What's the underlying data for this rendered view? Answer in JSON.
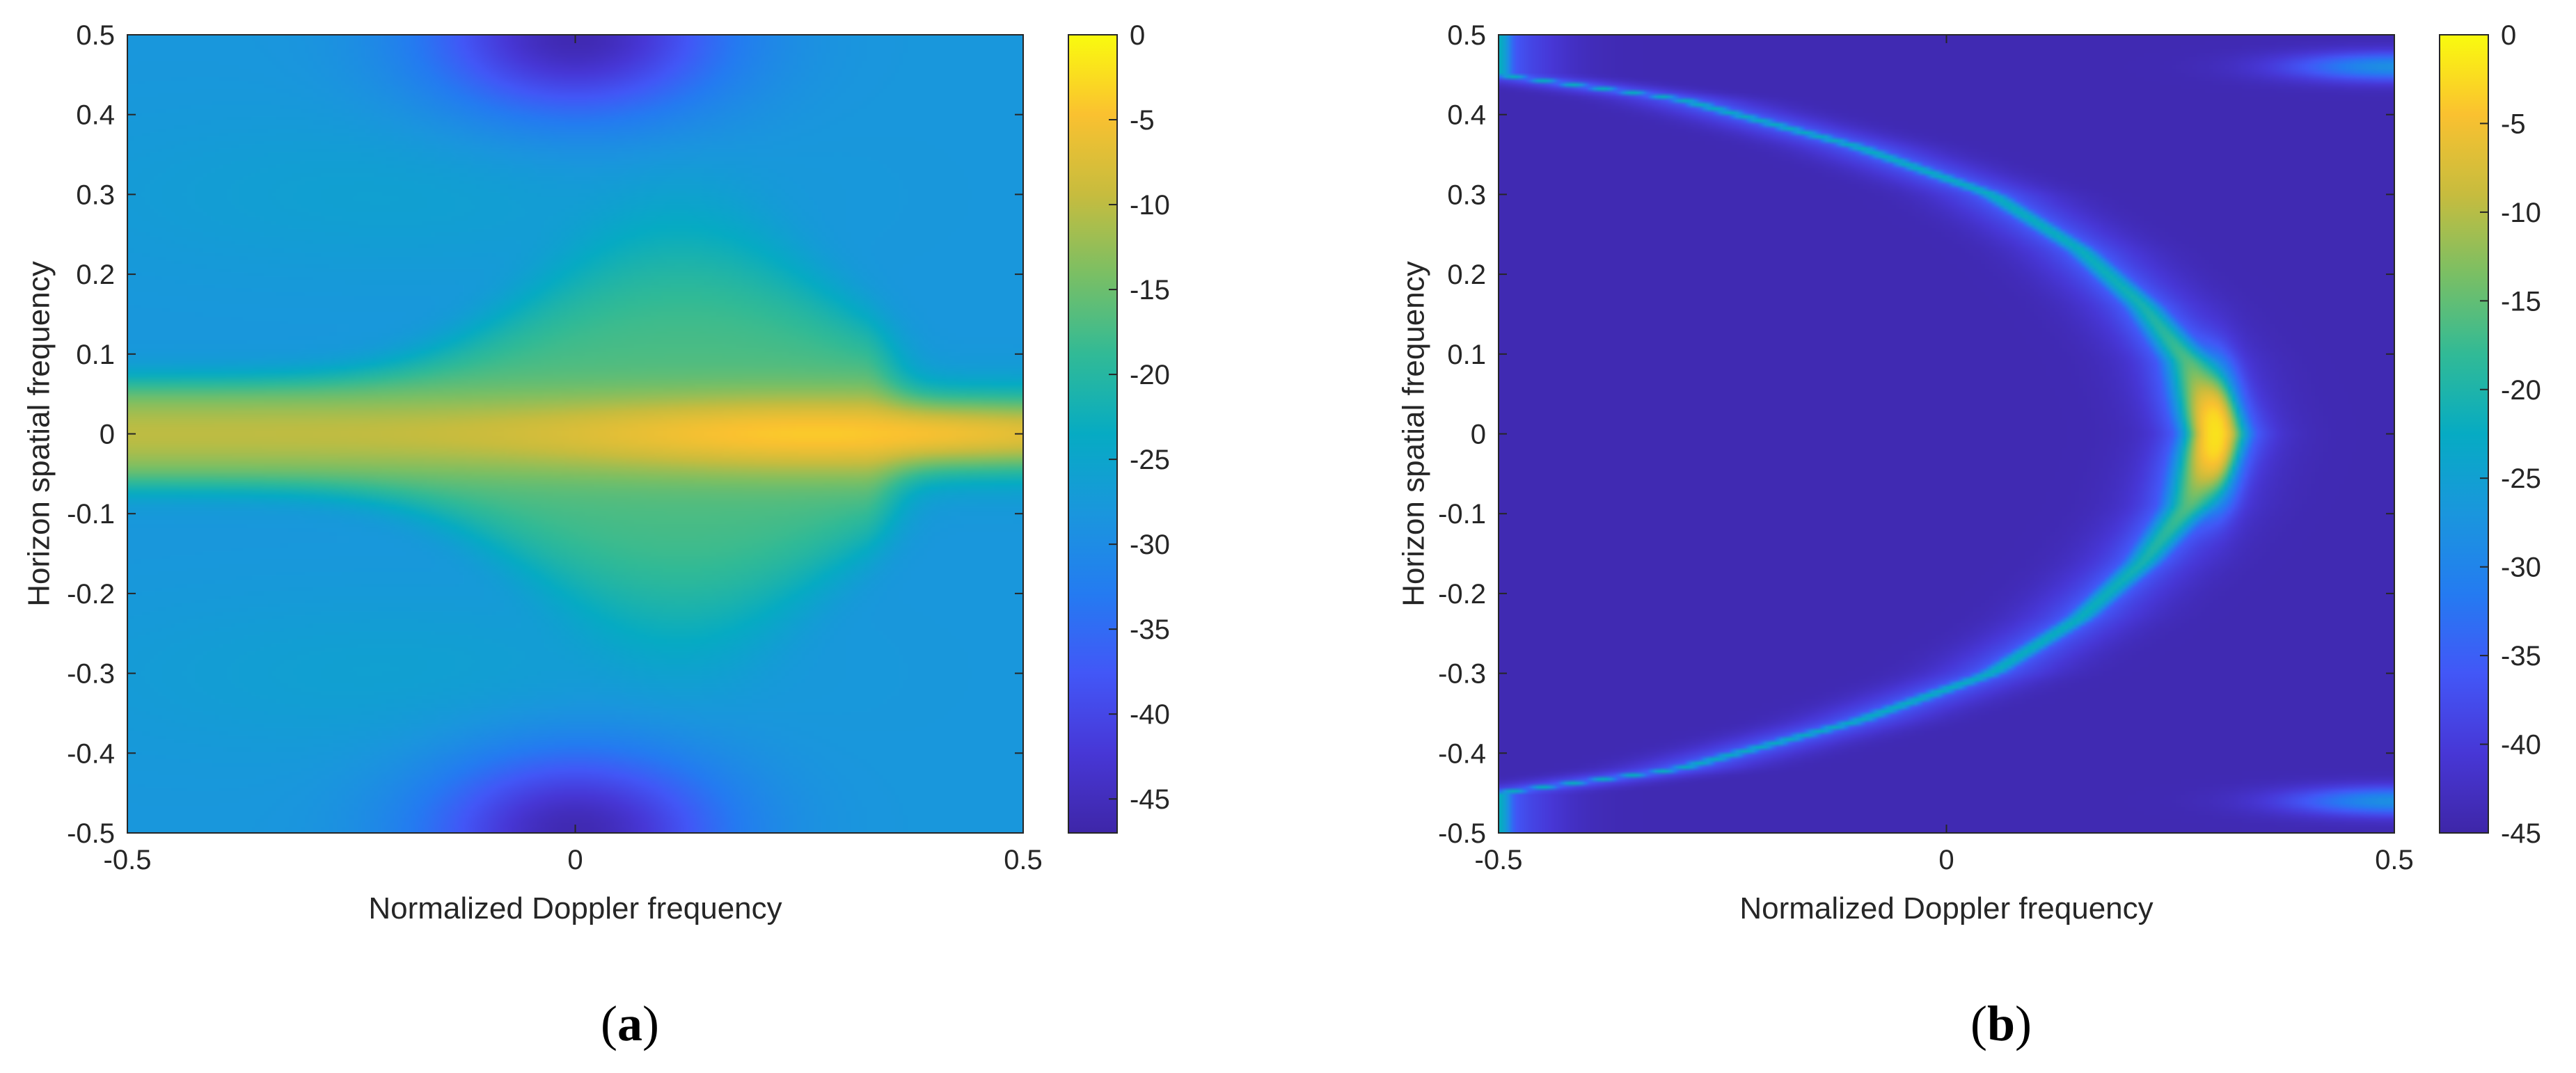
{
  "chart_data": [
    {
      "type": "heatmap",
      "caption_letter": "a",
      "xlabel": "Normalized Doppler frequency",
      "ylabel": "Horizon spatial frequency",
      "xlim": [
        -0.5,
        0.5
      ],
      "ylim": [
        -0.5,
        0.5
      ],
      "xticks": [
        -0.5,
        0,
        0.5
      ],
      "yticks": [
        0.5,
        0.4,
        0.3,
        0.2,
        0.1,
        0,
        -0.1,
        -0.2,
        -0.3,
        -0.4,
        -0.5
      ],
      "colorbar": {
        "range": [
          -47,
          0
        ],
        "ticks": [
          0,
          -5,
          -10,
          -15,
          -20,
          -25,
          -30,
          -35,
          -40,
          -45
        ],
        "colormap": "parula"
      },
      "features": {
        "background_db": -28,
        "ridge": {
          "center_y": 0.0,
          "peak_x": 0.27,
          "peak_db": -4,
          "base_db": -10,
          "halfwidth_y": 0.05
        },
        "green_lobe": {
          "center_x": 0.12,
          "halfwidth_y": 0.19,
          "level_db": -17
        },
        "dark_notches": [
          {
            "x": 0.0,
            "y": 0.5,
            "level_db": -46
          },
          {
            "x": 0.0,
            "y": -0.5,
            "level_db": -46
          }
        ]
      },
      "grid": false,
      "legend": "none"
    },
    {
      "type": "heatmap",
      "caption_letter": "b",
      "xlabel": "Normalized Doppler frequency",
      "ylabel": "Horizon spatial frequency",
      "xlim": [
        -0.5,
        0.5
      ],
      "ylim": [
        -0.5,
        0.5
      ],
      "xticks": [
        -0.5,
        0,
        0.5
      ],
      "yticks": [
        0.5,
        0.4,
        0.3,
        0.2,
        0.1,
        0,
        -0.1,
        -0.2,
        -0.3,
        -0.4,
        -0.5
      ],
      "colorbar": {
        "range": [
          -45,
          0
        ],
        "ticks": [
          0,
          -5,
          -10,
          -15,
          -20,
          -25,
          -30,
          -35,
          -40,
          -45
        ],
        "colormap": "parula"
      },
      "features": {
        "background_db": -44,
        "arc": [
          {
            "x": -0.5,
            "y": 0.45
          },
          {
            "x": -0.3,
            "y": 0.42
          },
          {
            "x": -0.1,
            "y": 0.36
          },
          {
            "x": 0.05,
            "y": 0.3
          },
          {
            "x": 0.15,
            "y": 0.23
          },
          {
            "x": 0.22,
            "y": 0.16
          },
          {
            "x": 0.27,
            "y": 0.09
          },
          {
            "x": 0.3,
            "y": 0.0
          },
          {
            "x": 0.27,
            "y": -0.09
          },
          {
            "x": 0.22,
            "y": -0.16
          },
          {
            "x": 0.15,
            "y": -0.23
          },
          {
            "x": 0.05,
            "y": -0.3
          },
          {
            "x": -0.1,
            "y": -0.36
          },
          {
            "x": -0.3,
            "y": -0.42
          },
          {
            "x": -0.5,
            "y": -0.45
          }
        ],
        "peak": {
          "x": 0.3,
          "y": 0.0,
          "db": -2
        },
        "corner_streaks": [
          {
            "x": 0.5,
            "y": 0.46
          },
          {
            "x": 0.5,
            "y": -0.46
          }
        ]
      },
      "grid": false,
      "legend": "none"
    }
  ]
}
